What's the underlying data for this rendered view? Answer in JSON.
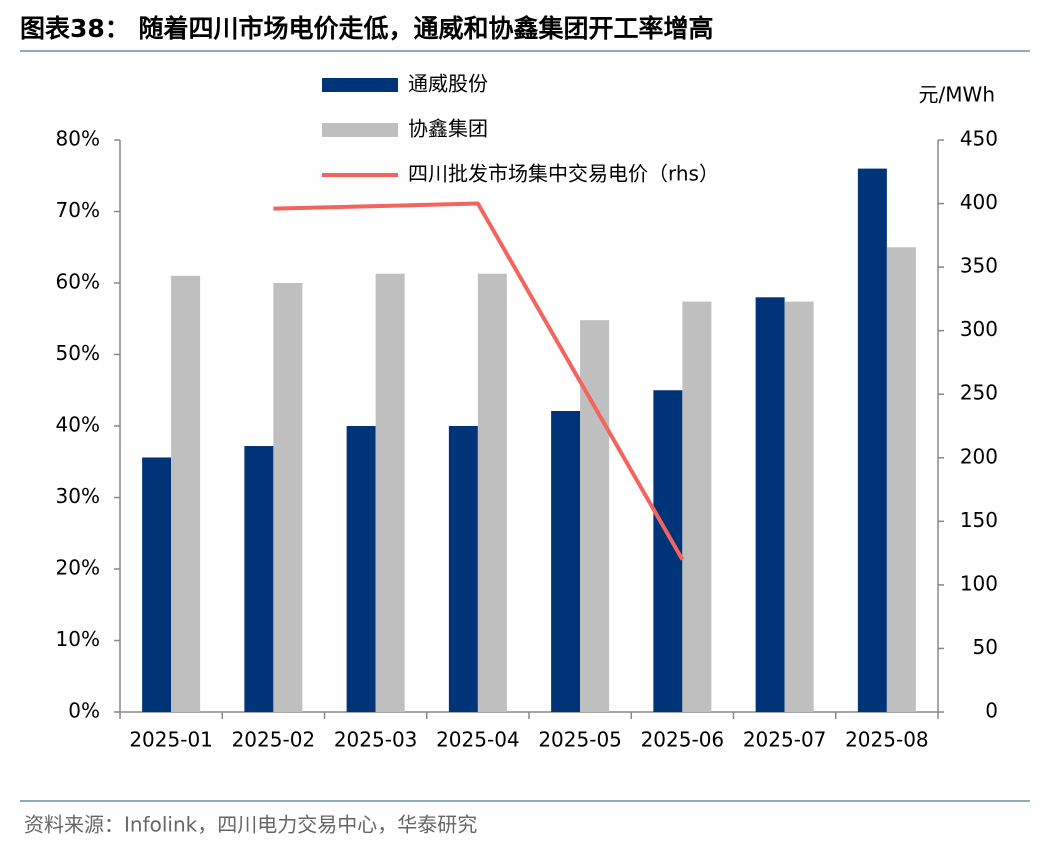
{
  "chart_data": {
    "type": "bar_line",
    "title": "图表38： 随着四川市场电价走低，通威和协鑫集团开工率增高",
    "source": "资料来源：Infolink，四川电力交易中心，华泰研究",
    "y2_unit": "元/MWh",
    "categories": [
      "2025-01",
      "2025-02",
      "2025-03",
      "2025-04",
      "2025-05",
      "2025-06",
      "2025-07",
      "2025-08"
    ],
    "series": [
      {
        "name": "通威股份",
        "color": "#003478",
        "values": [
          35.6,
          37.2,
          40,
          40,
          42.1,
          45,
          58,
          76
        ]
      },
      {
        "name": "协鑫集团",
        "color": "#bfbfbf",
        "values": [
          61,
          60,
          61.3,
          61.3,
          54.8,
          57.4,
          57.4,
          65
        ]
      },
      {
        "name": "四川批发市场集中交易电价（rhs）",
        "color": "#f4645f",
        "axis": "y2",
        "values": [
          null,
          396,
          398,
          400,
          260,
          120,
          null,
          null
        ]
      }
    ],
    "ylim": [
      0,
      80
    ],
    "yticks": [
      {
        "value": 0,
        "label": "0%"
      },
      {
        "value": 10,
        "label": "10%"
      },
      {
        "value": 20,
        "label": "20%"
      },
      {
        "value": 30,
        "label": "30%"
      },
      {
        "value": 40,
        "label": "40%"
      },
      {
        "value": 50,
        "label": "50%"
      },
      {
        "value": 60,
        "label": "60%"
      },
      {
        "value": 70,
        "label": "70%"
      },
      {
        "value": 80,
        "label": "80%"
      }
    ],
    "y2lim": [
      0,
      450
    ],
    "y2ticks": [
      0,
      50,
      100,
      150,
      200,
      250,
      300,
      350,
      400,
      450
    ]
  }
}
